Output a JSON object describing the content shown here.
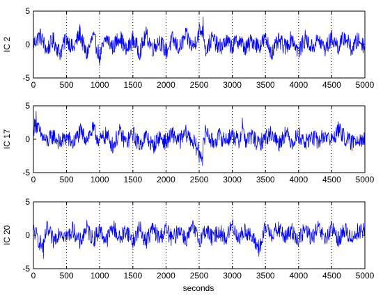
{
  "figure": {
    "xlabel": "seconds"
  },
  "chart_data": [
    {
      "type": "line",
      "ylabel": "IC 2",
      "xlim": [
        0,
        5000
      ],
      "ylim": [
        -5,
        5
      ],
      "xticks": [
        0,
        500,
        1000,
        1500,
        2000,
        2500,
        3000,
        3500,
        4000,
        4500,
        5000
      ],
      "yticks": [
        -5,
        0,
        5
      ],
      "grid": "vertical dotted at x ticks",
      "series": [
        {
          "color": "#0000ff",
          "x": [
            0,
            100,
            200,
            300,
            400,
            500,
            600,
            700,
            800,
            900,
            1000,
            1100,
            1200,
            1300,
            1400,
            1500,
            1600,
            1700,
            1800,
            1900,
            2000,
            2100,
            2200,
            2300,
            2400,
            2500,
            2560,
            2600,
            2700,
            2800,
            2900,
            3000,
            3100,
            3200,
            3300,
            3400,
            3500,
            3600,
            3700,
            3800,
            3900,
            4000,
            4100,
            4200,
            4300,
            4400,
            4500,
            4600,
            4700,
            4800,
            4900,
            5000
          ],
          "y": [
            0.3,
            2.5,
            -1.5,
            1.2,
            -2.3,
            1.8,
            -1.3,
            3.0,
            -2.8,
            2.2,
            -3.2,
            1.8,
            -0.8,
            2.4,
            -1.8,
            1.5,
            -2.0,
            2.6,
            -1.0,
            1.2,
            -2.0,
            1.4,
            -1.2,
            2.5,
            -0.8,
            3.2,
            4.2,
            -1.5,
            1.8,
            -1.0,
            0.8,
            -0.5,
            1.4,
            -1.2,
            1.2,
            -0.4,
            1.5,
            -2.2,
            0.9,
            -0.7,
            1.8,
            -2.0,
            1.6,
            -0.8,
            1.4,
            -1.2,
            1.8,
            -0.6,
            2.2,
            -1.4,
            1.4,
            -0.5
          ]
        }
      ]
    },
    {
      "type": "line",
      "ylabel": "IC 17",
      "xlim": [
        0,
        5000
      ],
      "ylim": [
        -5,
        5
      ],
      "xticks": [
        0,
        500,
        1000,
        1500,
        2000,
        2500,
        3000,
        3500,
        4000,
        4500,
        5000
      ],
      "yticks": [
        -5,
        0,
        5
      ],
      "grid": "vertical dotted at x ticks",
      "series": [
        {
          "color": "#0000ff",
          "x": [
            0,
            40,
            100,
            200,
            300,
            400,
            500,
            600,
            700,
            800,
            900,
            1000,
            1100,
            1200,
            1300,
            1400,
            1500,
            1600,
            1700,
            1800,
            1900,
            2000,
            2100,
            2200,
            2300,
            2400,
            2500,
            2550,
            2600,
            2700,
            2800,
            2900,
            3000,
            3100,
            3150,
            3200,
            3300,
            3400,
            3500,
            3600,
            3700,
            3800,
            3900,
            4000,
            4100,
            4200,
            4300,
            4400,
            4500,
            4600,
            4700,
            4800,
            4900,
            5000
          ],
          "y": [
            3.0,
            4.2,
            1.5,
            -0.8,
            1.0,
            -1.0,
            0.5,
            -1.2,
            2.0,
            0.2,
            2.6,
            -0.6,
            1.2,
            -1.8,
            1.8,
            -1.0,
            1.5,
            -1.5,
            0.8,
            -2.0,
            0.6,
            -0.8,
            1.4,
            -0.6,
            1.6,
            -0.4,
            -3.5,
            -4.0,
            2.5,
            -1.0,
            0.8,
            -0.2,
            1.2,
            -0.8,
            3.2,
            -0.5,
            0.8,
            -1.5,
            0.6,
            1.6,
            -1.2,
            1.8,
            -0.8,
            1.2,
            -1.0,
            0.6,
            -0.6,
            1.2,
            -0.4,
            2.6,
            0.4,
            -1.2,
            0.6,
            -0.4
          ]
        }
      ]
    },
    {
      "type": "line",
      "ylabel": "IC 20",
      "xlim": [
        0,
        5000
      ],
      "ylim": [
        -5,
        5
      ],
      "xticks": [
        0,
        500,
        1000,
        1500,
        2000,
        2500,
        3000,
        3500,
        4000,
        4500,
        5000
      ],
      "yticks": [
        -5,
        0,
        5
      ],
      "grid": "vertical dotted at x ticks",
      "series": [
        {
          "color": "#0000ff",
          "x": [
            0,
            100,
            150,
            200,
            300,
            400,
            500,
            600,
            700,
            800,
            900,
            1000,
            1100,
            1200,
            1300,
            1400,
            1500,
            1600,
            1700,
            1800,
            1900,
            2000,
            2100,
            2200,
            2300,
            2400,
            2500,
            2600,
            2700,
            2800,
            2900,
            3000,
            3100,
            3200,
            3300,
            3400,
            3450,
            3500,
            3600,
            3700,
            3800,
            3900,
            4000,
            4100,
            4200,
            4300,
            4400,
            4500,
            4600,
            4700,
            4800,
            4900,
            5000
          ],
          "y": [
            1.5,
            -2.0,
            -3.5,
            1.8,
            -1.5,
            1.4,
            -0.6,
            1.6,
            -2.0,
            2.0,
            -1.2,
            1.4,
            -1.5,
            2.4,
            -1.0,
            1.6,
            -1.8,
            2.0,
            -1.6,
            1.8,
            -0.8,
            1.6,
            -1.4,
            1.9,
            -1.2,
            2.0,
            -1.3,
            1.5,
            -0.9,
            1.2,
            -1.0,
            2.8,
            -0.8,
            1.4,
            -1.0,
            -3.2,
            -1.8,
            2.2,
            0.4,
            1.6,
            -0.6,
            1.2,
            -1.2,
            1.6,
            -0.8,
            1.8,
            -1.2,
            1.6,
            -1.0,
            1.4,
            -0.8,
            1.2,
            1.4
          ]
        }
      ]
    }
  ]
}
